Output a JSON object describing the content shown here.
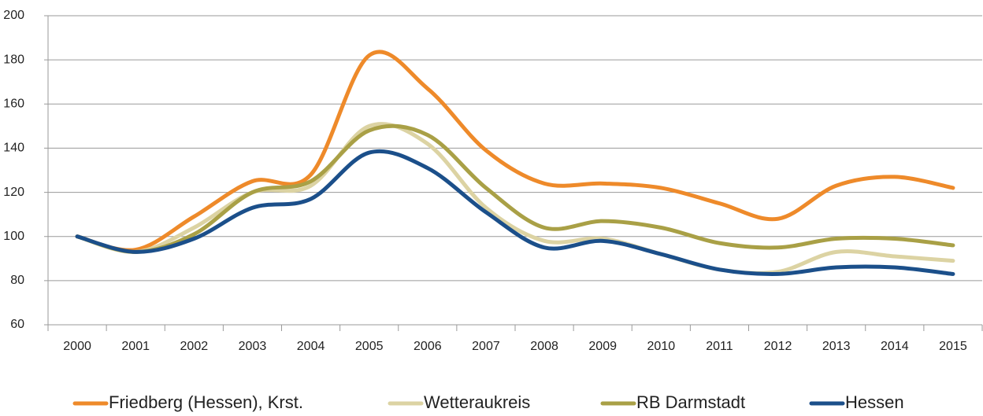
{
  "chart_data": {
    "type": "line",
    "categories": [
      "2000",
      "2001",
      "2002",
      "2003",
      "2004",
      "2005",
      "2006",
      "2007",
      "2008",
      "2009",
      "2010",
      "2011",
      "2012",
      "2013",
      "2014",
      "2015"
    ],
    "series": [
      {
        "name": "Friedberg (Hessen), Krst.",
        "color": "#ee8a2a",
        "values": [
          100,
          94,
          109,
          125,
          128,
          182,
          167,
          139,
          124,
          124,
          122,
          115,
          108,
          123,
          127,
          122
        ]
      },
      {
        "name": "Wetteraukreis",
        "color": "#dcd3a3",
        "values": [
          100,
          93,
          104,
          120,
          123,
          150,
          142,
          113,
          98,
          99,
          92,
          85,
          84,
          93,
          91,
          89
        ]
      },
      {
        "name": "RB Darmstadt",
        "color": "#a9a046",
        "values": [
          100,
          93,
          101,
          120,
          125,
          148,
          146,
          122,
          104,
          107,
          104,
          97,
          95,
          99,
          99,
          96
        ]
      },
      {
        "name": "Hessen",
        "color": "#1b4f8a",
        "values": [
          100,
          93,
          99,
          113,
          117,
          138,
          131,
          111,
          95,
          98,
          92,
          85,
          83,
          86,
          86,
          83
        ]
      }
    ],
    "ylim": [
      60,
      200
    ],
    "yticks": [
      60,
      80,
      100,
      120,
      140,
      160,
      180,
      200
    ],
    "grid": true,
    "legend": "bottom"
  }
}
